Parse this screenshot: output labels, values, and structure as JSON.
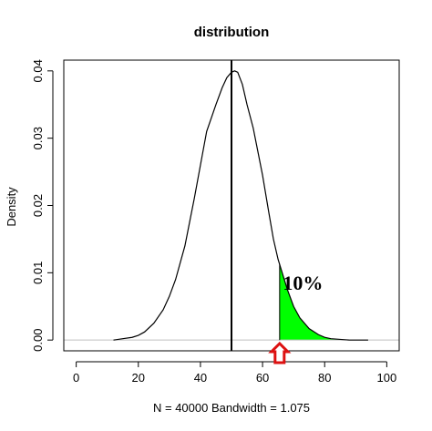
{
  "chart_data": {
    "type": "line",
    "title": "distribution",
    "xlabel": "N = 40000   Bandwidth = 1.075",
    "ylabel": "Density",
    "xlim": [
      -4,
      104
    ],
    "ylim": [
      -0.0016,
      0.0416
    ],
    "x_ticks": [
      0,
      20,
      40,
      60,
      80,
      100
    ],
    "x_tick_labels": [
      "0",
      "20",
      "40",
      "60",
      "80",
      "100"
    ],
    "y_ticks": [
      0.0,
      0.01,
      0.02,
      0.03,
      0.04
    ],
    "y_tick_labels": [
      "0.00",
      "0.01",
      "0.02",
      "0.03",
      "0.04"
    ],
    "series": [
      {
        "x": [
          12,
          15,
          18,
          20,
          22,
          25,
          28,
          30,
          32,
          35,
          38,
          40,
          42,
          45,
          47,
          48.5,
          50,
          51,
          52,
          53.5,
          55,
          57,
          60,
          62,
          63.5,
          65,
          66,
          68,
          70,
          72,
          75,
          78,
          80,
          82,
          85,
          88,
          90,
          94
        ],
        "y": [
          0.0,
          0.0002,
          0.0004,
          0.0007,
          0.0012,
          0.0025,
          0.0045,
          0.0065,
          0.009,
          0.014,
          0.021,
          0.026,
          0.031,
          0.035,
          0.0375,
          0.039,
          0.0398,
          0.04,
          0.0398,
          0.038,
          0.035,
          0.0315,
          0.0245,
          0.019,
          0.015,
          0.012,
          0.0105,
          0.0075,
          0.005,
          0.0033,
          0.0017,
          0.0008,
          0.0004,
          0.0002,
          0.0001,
          0.0,
          0.0,
          0.0
        ]
      }
    ],
    "color": "#000000",
    "mean_line_x": 50,
    "shaded_region": {
      "from_x": 65.5,
      "color": "#00ff00"
    },
    "annotation": {
      "text": "10%",
      "x": 73,
      "y": 0.0075
    },
    "marker": {
      "x": 65.5,
      "color": "#dd1111"
    },
    "zero_line_color": "#bfbfbf",
    "grid": false
  }
}
